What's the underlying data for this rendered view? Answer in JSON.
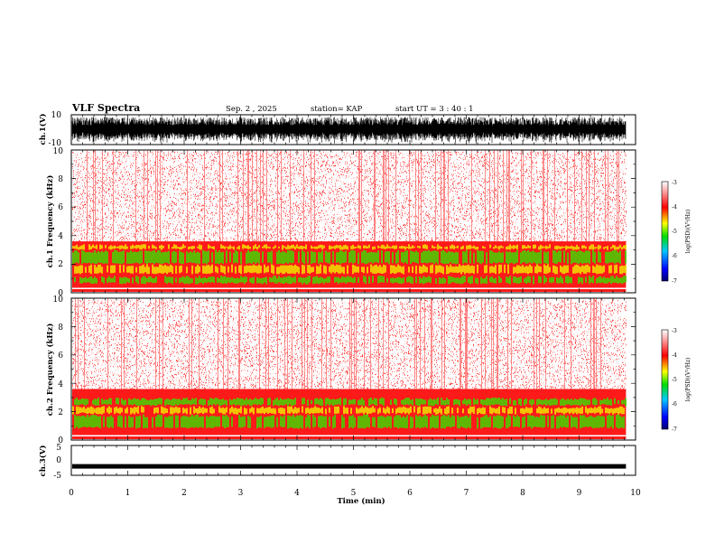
{
  "header": {
    "title": "VLF Spectra",
    "date": "Sep. 2 , 2025",
    "station": "station= KAP",
    "start": "start UT = 3 : 40 : 1"
  },
  "colors": {
    "waveform": "#000000",
    "spectrum_high": "#ff1a1a",
    "spectrum_low": "#ffc0c0",
    "band_green": "#44d400",
    "band_yellow": "#f0e000",
    "colorbar": [
      "#000070",
      "#0000ff",
      "#00c8ff",
      "#00dd00",
      "#ffff00",
      "#ff0000",
      "#ffffff"
    ]
  },
  "chart_data": [
    {
      "type": "line",
      "panel": "ch1-waveform",
      "ylabel": "ch.1(V)",
      "ylim": [
        -10,
        10
      ],
      "y_ticks": [
        "10",
        "-10"
      ],
      "xlim": [
        0,
        10
      ],
      "x_data_max": 9.83,
      "description_level": "broadband noise filling about ±8 V"
    },
    {
      "type": "heatmap",
      "panel": "ch1-spectrogram",
      "ylabel": "ch.1 Frequency (kHz)",
      "ylim": [
        0,
        10
      ],
      "y_ticks": [
        "0",
        "2",
        "4",
        "6",
        "8",
        "10"
      ],
      "xlim": [
        0,
        10
      ],
      "x_data_max": 9.83,
      "colorbar_label": "log(PSD)(V²/Hz)",
      "colorbar_ticks": [
        "-3",
        "-4",
        "-5",
        "-6",
        "-7"
      ],
      "colorbar_range": [
        -7,
        -3
      ],
      "bands_khz": [
        [
          0.6,
          1.2
        ],
        [
          1.3,
          2.0
        ],
        [
          2.0,
          3.0
        ],
        [
          3.0,
          3.4
        ]
      ]
    },
    {
      "type": "heatmap",
      "panel": "ch2-spectrogram",
      "ylabel": "ch.2 Frequency (kHz)",
      "ylim": [
        0,
        10
      ],
      "y_ticks": [
        "0",
        "2",
        "4",
        "6",
        "8",
        "10"
      ],
      "xlim": [
        0,
        10
      ],
      "x_data_max": 9.83,
      "colorbar_label": "log(PSD)(V²/Hz)",
      "colorbar_ticks": [
        "-3",
        "-4",
        "-5",
        "-6",
        "-7"
      ],
      "colorbar_range": [
        -7,
        -3
      ],
      "bands_khz": [
        [
          0.8,
          1.8
        ],
        [
          1.8,
          2.4
        ],
        [
          2.4,
          3.0
        ]
      ]
    },
    {
      "type": "line",
      "panel": "ch3-waveform",
      "ylabel": "ch.3(V)",
      "ylim": [
        -5,
        5
      ],
      "y_ticks": [
        "5",
        "0",
        "-5"
      ],
      "xlim": [
        0,
        10
      ],
      "x_data_max": 9.83,
      "level": -2
    }
  ],
  "x_axis": {
    "label": "Time (min)",
    "ticks": [
      "0",
      "1",
      "2",
      "3",
      "4",
      "5",
      "6",
      "7",
      "8",
      "9",
      "10"
    ]
  }
}
